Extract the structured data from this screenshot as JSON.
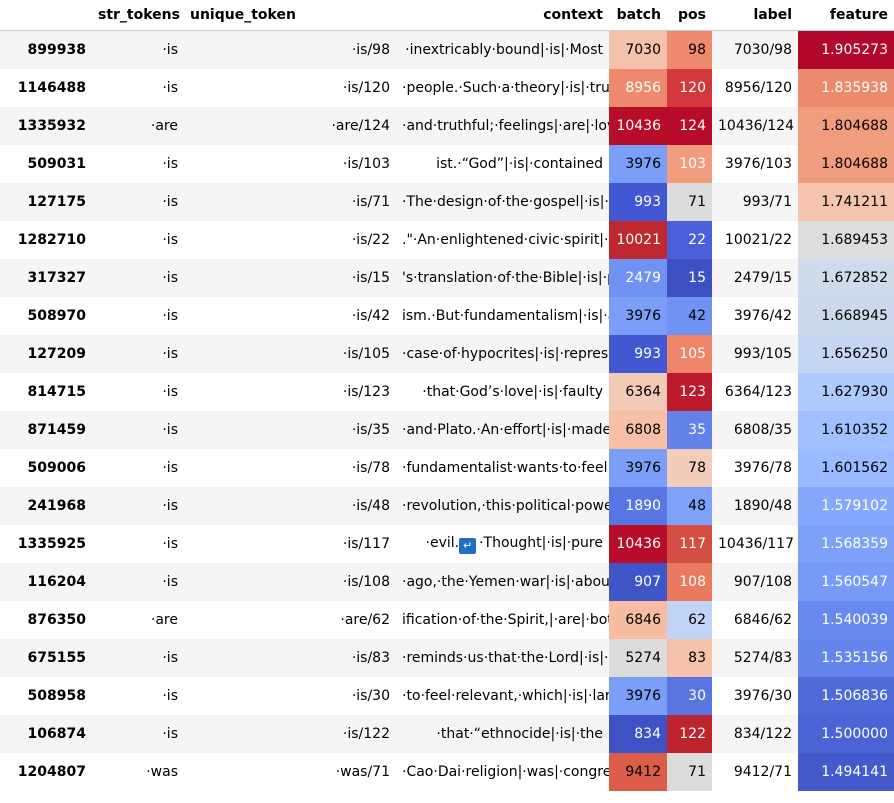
{
  "columns": {
    "str_tokens": "str_tokens",
    "unique_token": "unique_token",
    "context": "context",
    "batch": "batch",
    "pos": "pos",
    "label": "label",
    "feature": "feature"
  },
  "colors": {
    "header_border": "#cccccc",
    "row_odd": "#f5f5f5",
    "row_even": "#ffffff",
    "newline_icon": "#1f6fc5"
  },
  "rows": [
    {
      "index": "899938",
      "str_tokens": "·is",
      "unique_token": "·is/98",
      "context": "·inextricably·bound|·is|·Most",
      "batch": "7030",
      "pos": "98",
      "label": "7030/98",
      "feature": "1.905273",
      "batch_bg": "#f4c1aa",
      "batch_fg": "#000000",
      "pos_bg": "#ef8a6e",
      "pos_fg": "#000000",
      "feature_bg": "#b2082c",
      "feature_fg": "#ffffff"
    },
    {
      "index": "1146488",
      "str_tokens": "·is",
      "unique_token": "·is/120",
      "context": "·people.·Such·a·theory|·is|·truly",
      "batch": "8956",
      "pos": "120",
      "label": "8956/120",
      "feature": "1.835938",
      "batch_bg": "#ef8a6e",
      "batch_fg": "#ffffff",
      "pos_bg": "#d3383c",
      "pos_fg": "#ffffff",
      "feature_bg": "#ec8b6c",
      "feature_fg": "#ffffff"
    },
    {
      "index": "1335932",
      "str_tokens": "·are",
      "unique_token": "·are/124",
      "context": "·and·truthful;·feelings|·are|·loving",
      "batch": "10436",
      "pos": "124",
      "label": "10436/124",
      "feature": "1.804688",
      "batch_bg": "#b70d28",
      "batch_fg": "#ffffff",
      "pos_bg": "#b70d28",
      "pos_fg": "#ffffff",
      "feature_bg": "#f29c7e",
      "feature_fg": "#000000"
    },
    {
      "index": "509031",
      "str_tokens": "·is",
      "unique_token": "·is/103",
      "context": "ist.·“God”|·is|·contained",
      "batch": "3976",
      "pos": "103",
      "label": "3976/103",
      "feature": "1.804688",
      "batch_bg": "#7b9ff9",
      "batch_fg": "#000000",
      "pos_bg": "#f29c7e",
      "pos_fg": "#ffffff",
      "feature_bg": "#f29c7e",
      "feature_fg": "#000000"
    },
    {
      "index": "127175",
      "str_tokens": "·is",
      "unique_token": "·is/71",
      "context": "·The·design·of·the·gospel|·is|·to",
      "batch": "993",
      "pos": "71",
      "label": "993/71",
      "feature": "1.741211",
      "batch_bg": "#4257d2",
      "batch_fg": "#ffffff",
      "pos_bg": "#dddcdc",
      "pos_fg": "#000000",
      "feature_bg": "#f4c4ae",
      "feature_fg": "#000000"
    },
    {
      "index": "1282710",
      "str_tokens": "·is",
      "unique_token": "·is/22",
      "context": ".\"·An·enlightened·civic·spirit|·is|·shown",
      "batch": "10021",
      "pos": "22",
      "label": "10021/22",
      "feature": "1.689453",
      "batch_bg": "#c0282f",
      "batch_fg": "#ffffff",
      "pos_bg": "#4a5fd9",
      "pos_fg": "#ffffff",
      "feature_bg": "#dcdddd",
      "feature_fg": "#000000"
    },
    {
      "index": "317327",
      "str_tokens": "·is",
      "unique_token": "·is/15",
      "context": "'s·translation·of·the·Bible|·is|·prohibited",
      "batch": "2479",
      "pos": "15",
      "label": "2479/15",
      "feature": "1.672852",
      "batch_bg": "#6f92f3",
      "batch_fg": "#ffffff",
      "pos_bg": "#3d50c3",
      "pos_fg": "#ffffff",
      "feature_bg": "#cfdaea",
      "feature_fg": "#000000"
    },
    {
      "index": "508970",
      "str_tokens": "·is",
      "unique_token": "·is/42",
      "context": "ism.·But·fundamentalism|·is|·also",
      "batch": "3976",
      "pos": "42",
      "label": "3976/42",
      "feature": "1.668945",
      "batch_bg": "#7b9ff9",
      "batch_fg": "#000000",
      "pos_bg": "#7093f3",
      "pos_fg": "#000000",
      "feature_bg": "#ccd9ed",
      "feature_fg": "#000000"
    },
    {
      "index": "127209",
      "str_tokens": "·is",
      "unique_token": "·is/105",
      "context": "·case·of·hypocrites|·is|·represented",
      "batch": "993",
      "pos": "105",
      "label": "993/105",
      "feature": "1.656250",
      "batch_bg": "#4257d2",
      "batch_fg": "#ffffff",
      "pos_bg": "#ee8468",
      "pos_fg": "#ffffff",
      "feature_bg": "#c5d6f2",
      "feature_fg": "#000000"
    },
    {
      "index": "814715",
      "str_tokens": "·is",
      "unique_token": "·is/123",
      "context": "·that·God’s·love|·is|·faulty",
      "batch": "6364",
      "pos": "123",
      "label": "6364/123",
      "feature": "1.627930",
      "batch_bg": "#f2cab5",
      "batch_fg": "#000000",
      "pos_bg": "#bb1b2c",
      "pos_fg": "#ffffff",
      "feature_bg": "#afcafc",
      "feature_fg": "#000000"
    },
    {
      "index": "871459",
      "str_tokens": "·is",
      "unique_token": "·is/35",
      "context": "·and·Plato.·An·effort|·is|·made",
      "batch": "6808",
      "pos": "35",
      "label": "6808/35",
      "feature": "1.610352",
      "batch_bg": "#f6bfa6",
      "batch_fg": "#000000",
      "pos_bg": "#6282ea",
      "pos_fg": "#ffffff",
      "feature_bg": "#a1c0ff",
      "feature_fg": "#000000"
    },
    {
      "index": "509006",
      "str_tokens": "·is",
      "unique_token": "·is/78",
      "context": "·fundamentalist·wants·to·feel|·is|·a",
      "batch": "3976",
      "pos": "78",
      "label": "3976/78",
      "feature": "1.601562",
      "batch_bg": "#7b9ff9",
      "batch_fg": "#000000",
      "pos_bg": "#f1cdba",
      "pos_fg": "#000000",
      "feature_bg": "#9abbff",
      "feature_fg": "#000000"
    },
    {
      "index": "241968",
      "str_tokens": "·is",
      "unique_token": "·is/48",
      "context": "·revolution,·this·political·power|·is|·taking",
      "batch": "1890",
      "pos": "48",
      "label": "1890/48",
      "feature": "1.579102",
      "batch_bg": "#5977e3",
      "batch_fg": "#ffffff",
      "pos_bg": "#7ea1fa",
      "pos_fg": "#000000",
      "feature_bg": "#85a8fc",
      "feature_fg": "#ffffff"
    },
    {
      "index": "1335925",
      "str_tokens": "·is",
      "unique_token": "·is/117",
      "context": "·Thought|·is|·pure",
      "context_prefix": "·evil.",
      "batch": "10436",
      "pos": "117",
      "label": "10436/117",
      "feature": "1.568359",
      "batch_bg": "#b70d28",
      "batch_fg": "#ffffff",
      "pos_bg": "#d44e41",
      "pos_fg": "#ffffff",
      "feature_bg": "#7da0f9",
      "feature_fg": "#ffffff"
    },
    {
      "index": "116204",
      "str_tokens": "·is",
      "unique_token": "·is/108",
      "context": "·ago,·the·Yemen·war|·is|·about",
      "batch": "907",
      "pos": "108",
      "label": "907/108",
      "feature": "1.560547",
      "batch_bg": "#4055c8",
      "batch_fg": "#ffffff",
      "pos_bg": "#e97a5f",
      "pos_fg": "#ffffff",
      "feature_bg": "#779af7",
      "feature_fg": "#ffffff"
    },
    {
      "index": "876350",
      "str_tokens": "·are",
      "unique_token": "·are/62",
      "context": "ification·of·the·Spirit,|·are|·both",
      "batch": "6846",
      "pos": "62",
      "label": "6846/62",
      "feature": "1.540039",
      "batch_bg": "#f7bca1",
      "batch_fg": "#000000",
      "pos_bg": "#c0d4f5",
      "pos_fg": "#000000",
      "feature_bg": "#6788ee",
      "feature_fg": "#ffffff"
    },
    {
      "index": "675155",
      "str_tokens": "·is",
      "unique_token": "·is/83",
      "context": "·reminds·us·that·the·Lord|·is|·n",
      "batch": "5274",
      "pos": "83",
      "label": "5274/83",
      "feature": "1.535156",
      "batch_bg": "#dedcdb",
      "batch_fg": "#000000",
      "pos_bg": "#f5c2aa",
      "pos_fg": "#000000",
      "feature_bg": "#6485ec",
      "feature_fg": "#ffffff"
    },
    {
      "index": "508958",
      "str_tokens": "·is",
      "unique_token": "·is/30",
      "context": "·to·feel·relevant,·which|·is|·largely",
      "batch": "3976",
      "pos": "30",
      "label": "3976/30",
      "feature": "1.506836",
      "batch_bg": "#7b9ff9",
      "batch_fg": "#000000",
      "pos_bg": "#5875e1",
      "pos_fg": "#ffffff",
      "feature_bg": "#4f69d9",
      "feature_fg": "#ffffff"
    },
    {
      "index": "106874",
      "str_tokens": "·is",
      "unique_token": "·is/122",
      "context": "·that·“ethnocide|·is|·the",
      "batch": "834",
      "pos": "122",
      "label": "834/122",
      "feature": "1.500000",
      "batch_bg": "#3e51c5",
      "batch_fg": "#ffffff",
      "pos_bg": "#be242e",
      "pos_fg": "#ffffff",
      "feature_bg": "#4b64d5",
      "feature_fg": "#ffffff"
    },
    {
      "index": "1204807",
      "str_tokens": "·was",
      "unique_token": "·was/71",
      "context": "·Cao·Dai·religion|·was|·congreg",
      "batch": "9412",
      "pos": "71",
      "label": "9412/71",
      "feature": "1.494141",
      "batch_bg": "#dc5d4a",
      "batch_fg": "#000000",
      "pos_bg": "#dddcdc",
      "pos_fg": "#000000",
      "feature_bg": "#445acc",
      "feature_fg": "#ffffff"
    }
  ]
}
